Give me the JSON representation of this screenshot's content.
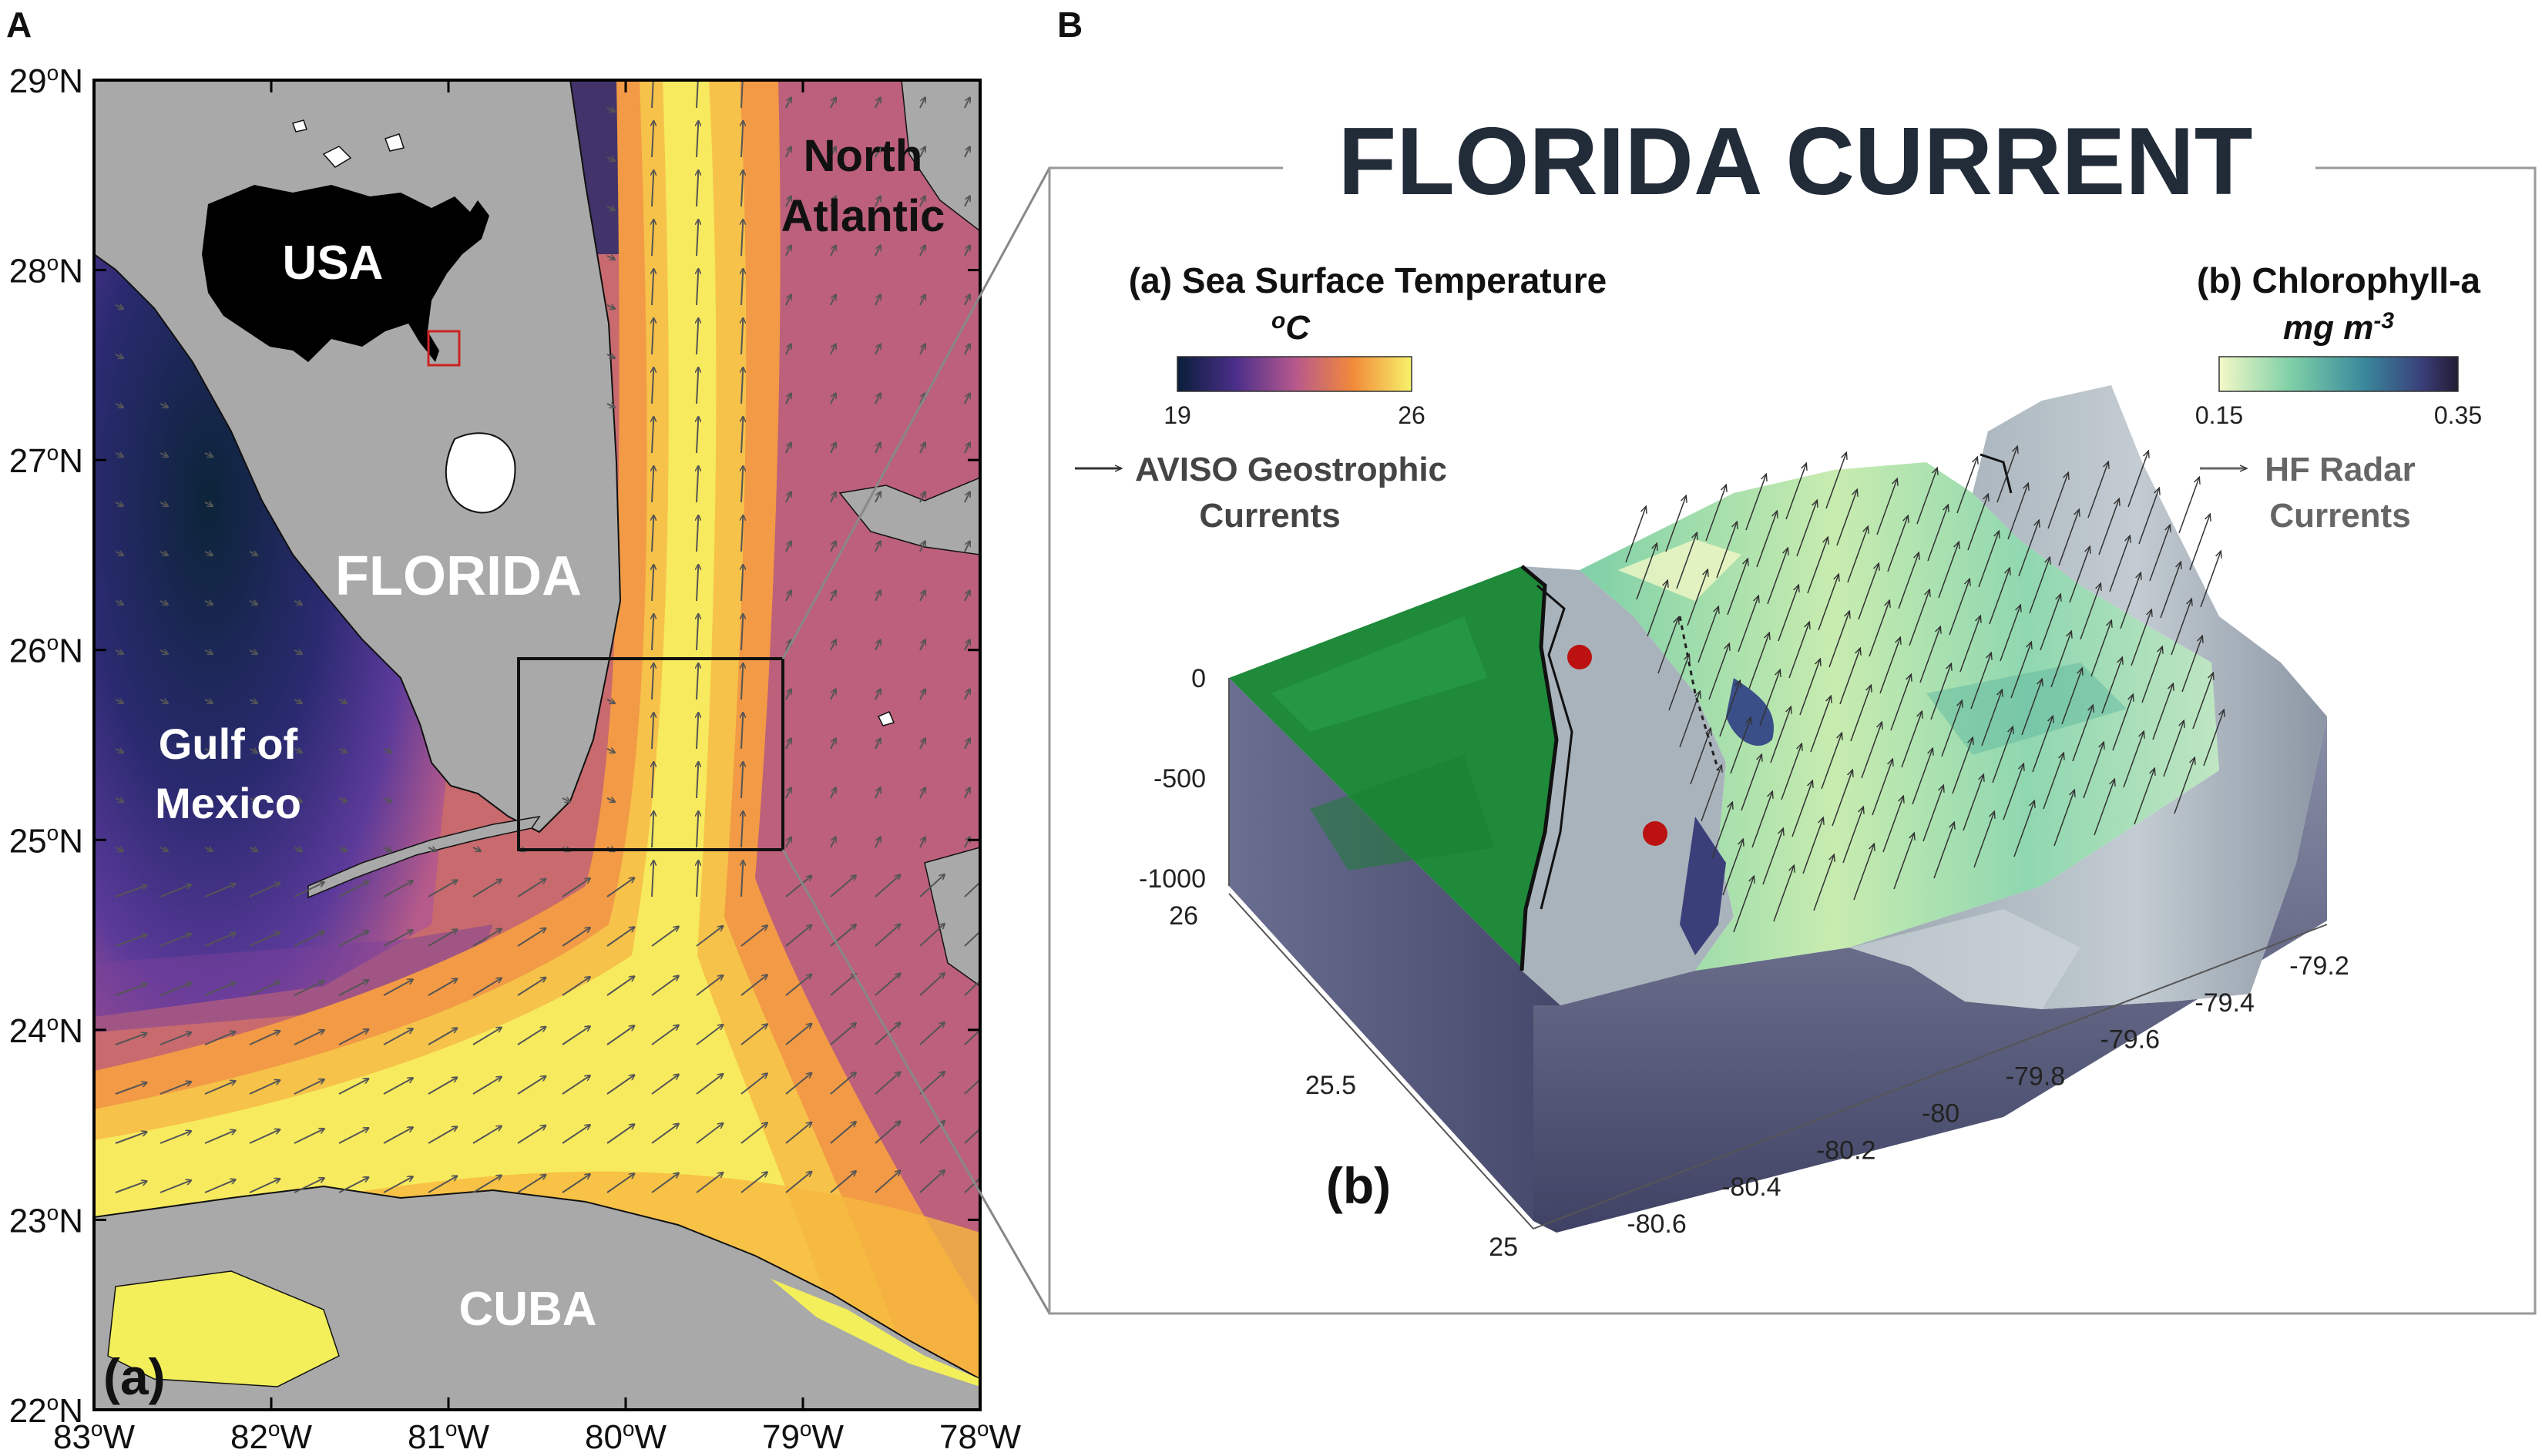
{
  "panel_a": {
    "panel_letter": "A",
    "corner_label": "(a)",
    "lat_ticks": [
      {
        "value": 29,
        "label": "29",
        "suffix": "N"
      },
      {
        "value": 28,
        "label": "28",
        "suffix": "N"
      },
      {
        "value": 27,
        "label": "27",
        "suffix": "N"
      },
      {
        "value": 26,
        "label": "26",
        "suffix": "N"
      },
      {
        "value": 25,
        "label": "25",
        "suffix": "N"
      },
      {
        "value": 24,
        "label": "24",
        "suffix": "N"
      },
      {
        "value": 23,
        "label": "23",
        "suffix": "N"
      },
      {
        "value": 22,
        "label": "22",
        "suffix": "N"
      }
    ],
    "lon_ticks": [
      {
        "value": -83,
        "label": "83",
        "suffix": "W"
      },
      {
        "value": -82,
        "label": "82",
        "suffix": "W"
      },
      {
        "value": -81,
        "label": "81",
        "suffix": "W"
      },
      {
        "value": -80,
        "label": "80",
        "suffix": "W"
      },
      {
        "value": -79,
        "label": "79",
        "suffix": "W"
      },
      {
        "value": -78,
        "label": "78",
        "suffix": "W"
      }
    ],
    "degree_symbol": "o",
    "labels": {
      "usa": "USA",
      "florida": "FLORIDA",
      "gulf_line1": "Gulf of",
      "gulf_line2": "Mexico",
      "atlantic_line1": "North",
      "atlantic_line2": "Atlantic",
      "cuba": "CUBA"
    },
    "colors": {
      "land": "#a9a9a9",
      "sst_warm": "#f5e93f",
      "sst_cold": "#0d2a3c",
      "inset_box": "#cc2222"
    }
  },
  "panel_b": {
    "panel_letter": "B",
    "title": "FLORIDA CURRENT",
    "sublabel": "(b)",
    "sst": {
      "title": "(a) Sea Surface Temperature",
      "unit": "oC",
      "min_label": "19",
      "max_label": "26",
      "arrow_text": "AVISO Geostrophic",
      "arrow_text2": "Currents"
    },
    "chl": {
      "title": "(b) Chlorophyll-a",
      "unit": "mg m-3",
      "min_label": "0.15",
      "max_label": "0.35",
      "arrow_text": "HF Radar",
      "arrow_text2": "Currents"
    },
    "depth_ticks": [
      "0",
      "-500",
      "-1000"
    ],
    "lat_ticks": [
      "26",
      "25.5",
      "25"
    ],
    "lon_ticks": [
      "-80.6",
      "-80.4",
      "-80.2",
      "-80",
      "-79.8",
      "-79.6",
      "-79.4",
      "-79.2"
    ],
    "colors": {
      "land": "#1e8a3a",
      "water_side": "#4a4c6c",
      "bathy": "#a6b4bc",
      "station": "#bb1111"
    }
  }
}
